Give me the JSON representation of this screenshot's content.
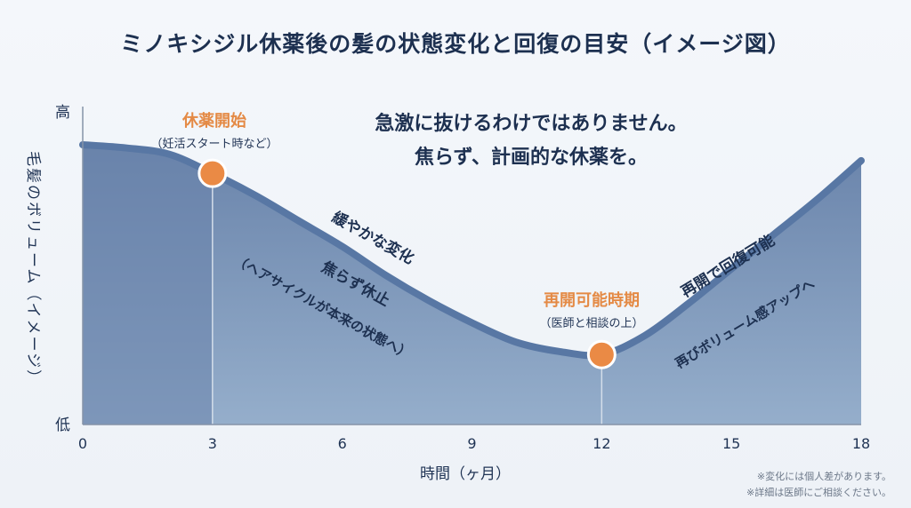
{
  "title": "ミノキシジル休薬後の髪の状態変化と回復の目安（イメージ図）",
  "colors": {
    "curve": "#5877a4",
    "fill_dark": "#6a84ab",
    "fill_light": "#95aecb",
    "marker": "#ea8a45",
    "accent_text": "#e48a45",
    "text": "#1f3354"
  },
  "chart_data": {
    "type": "area",
    "xlabel": "時間（ヶ月）",
    "ylabel": "毛髪のボリューム（イメージ）",
    "xlim": [
      0,
      18
    ],
    "ylim": [
      0,
      1
    ],
    "x_ticks": [
      "0",
      "3",
      "6",
      "9",
      "12",
      "15",
      "18"
    ],
    "y_ticks": {
      "high": "高",
      "low": "低"
    },
    "shaded_region": [
      0,
      3
    ],
    "grid": false,
    "legend": "none",
    "series": [
      {
        "x": [
          0,
          1,
          2,
          3,
          4,
          5,
          6,
          7,
          8,
          9,
          10,
          11,
          12,
          13,
          14,
          15,
          16,
          17,
          18
        ],
        "values": [
          0.88,
          0.87,
          0.85,
          0.79,
          0.72,
          0.64,
          0.56,
          0.47,
          0.39,
          0.32,
          0.26,
          0.23,
          0.22,
          0.28,
          0.38,
          0.49,
          0.6,
          0.71,
          0.83
        ]
      }
    ],
    "markers": [
      {
        "x": 3,
        "y": 0.79,
        "label": "休薬開始",
        "sublabel": "（妊活スタート時など）"
      },
      {
        "x": 12,
        "y": 0.22,
        "label": "再開可能時期",
        "sublabel": "（医師と相談の上）"
      }
    ],
    "annotations": {
      "message_line1": "急激に抜けるわけではありません。",
      "message_line2": "焦らず、計画的な休薬を。",
      "phase_decline_1": "緩やかな変化",
      "phase_decline_2": "焦らず休止",
      "phase_decline_3": "（ヘアサイクルが本来の状態へ）",
      "phase_recovery_1": "再開で回復可能",
      "phase_recovery_2": "再びボリューム感アップへ"
    }
  },
  "notes": {
    "line1": "※変化には個人差があります。",
    "line2": "※詳細は医師にご相談ください。"
  }
}
